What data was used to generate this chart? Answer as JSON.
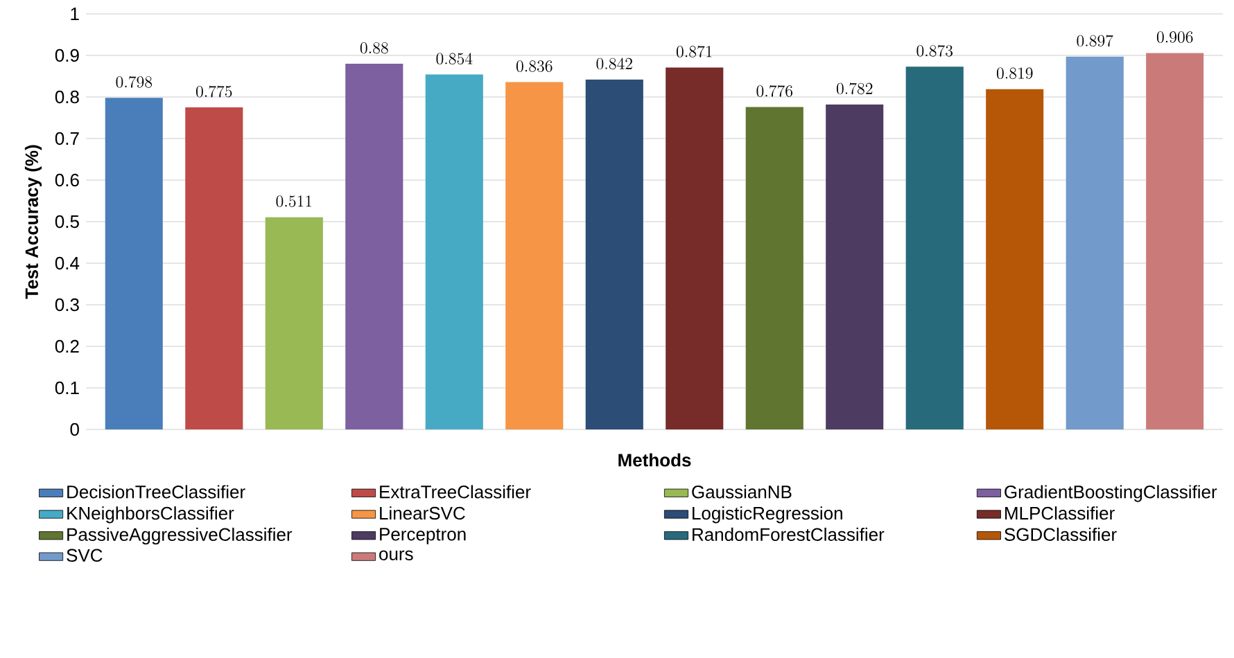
{
  "chart_data": {
    "type": "bar",
    "xlabel": "Methods",
    "ylabel": "Test Accuracy (%)",
    "categories": [
      null,
      null,
      null,
      null,
      null,
      null,
      null,
      null,
      null,
      null,
      null,
      null,
      null,
      null
    ],
    "series": [
      {
        "name": "DecisionTreeClassifier",
        "color": "#4a7ebb",
        "values": [
          0.798,
          null,
          null,
          null,
          null,
          null,
          null,
          null,
          null,
          null,
          null,
          null,
          null,
          null
        ]
      },
      {
        "name": "ExtraTreeClassifier",
        "color": "#be4b48",
        "values": [
          null,
          0.775,
          null,
          null,
          null,
          null,
          null,
          null,
          null,
          null,
          null,
          null,
          null,
          null
        ]
      },
      {
        "name": "GaussianNB",
        "color": "#98b954",
        "values": [
          null,
          null,
          0.511,
          null,
          null,
          null,
          null,
          null,
          null,
          null,
          null,
          null,
          null,
          null
        ]
      },
      {
        "name": "GradientBoostingClassifier",
        "color": "#7d60a0",
        "values": [
          null,
          null,
          null,
          0.88,
          null,
          null,
          null,
          null,
          null,
          null,
          null,
          null,
          null,
          null
        ]
      },
      {
        "name": "KNeighborsClassifier",
        "color": "#46aac5",
        "values": [
          null,
          null,
          null,
          null,
          0.854,
          null,
          null,
          null,
          null,
          null,
          null,
          null,
          null,
          null
        ]
      },
      {
        "name": "LinearSVC",
        "color": "#f69545",
        "values": [
          null,
          null,
          null,
          null,
          null,
          0.836,
          null,
          null,
          null,
          null,
          null,
          null,
          null,
          null
        ]
      },
      {
        "name": "LogisticRegression",
        "color": "#2c4d75",
        "values": [
          null,
          null,
          null,
          null,
          null,
          null,
          0.842,
          null,
          null,
          null,
          null,
          null,
          null,
          null
        ]
      },
      {
        "name": "MLPClassifier",
        "color": "#772c2a",
        "values": [
          null,
          null,
          null,
          null,
          null,
          null,
          null,
          0.871,
          null,
          null,
          null,
          null,
          null,
          null
        ]
      },
      {
        "name": "PassiveAggressiveClassifier",
        "color": "#5f7530",
        "values": [
          null,
          null,
          null,
          null,
          null,
          null,
          null,
          null,
          0.776,
          null,
          null,
          null,
          null,
          null
        ]
      },
      {
        "name": "Perceptron",
        "color": "#4d3b62",
        "values": [
          null,
          null,
          null,
          null,
          null,
          null,
          null,
          null,
          null,
          0.782,
          null,
          null,
          null,
          null
        ]
      },
      {
        "name": "RandomForestClassifier",
        "color": "#276a7c",
        "values": [
          null,
          null,
          null,
          null,
          null,
          null,
          null,
          null,
          null,
          null,
          0.873,
          null,
          null,
          null
        ]
      },
      {
        "name": "SGDClassifier",
        "color": "#b65708",
        "values": [
          null,
          null,
          null,
          null,
          null,
          null,
          null,
          null,
          null,
          null,
          null,
          0.819,
          null,
          null
        ]
      },
      {
        "name": "SVC",
        "color": "#729aca",
        "values": [
          null,
          null,
          null,
          null,
          null,
          null,
          null,
          null,
          null,
          null,
          null,
          null,
          0.897,
          null
        ]
      },
      {
        "name": "ours",
        "color": "#ca7b79",
        "values": [
          null,
          null,
          null,
          null,
          null,
          null,
          null,
          null,
          null,
          null,
          null,
          null,
          null,
          0.906
        ]
      }
    ],
    "ylim": [
      0,
      1
    ],
    "yticks": [
      0,
      0.1,
      0.2,
      0.3,
      0.4,
      0.5,
      0.6,
      0.7,
      0.8,
      0.9,
      1
    ],
    "data_labels": true,
    "grid": "y",
    "legend": "bottom",
    "tick_labels": "y"
  }
}
